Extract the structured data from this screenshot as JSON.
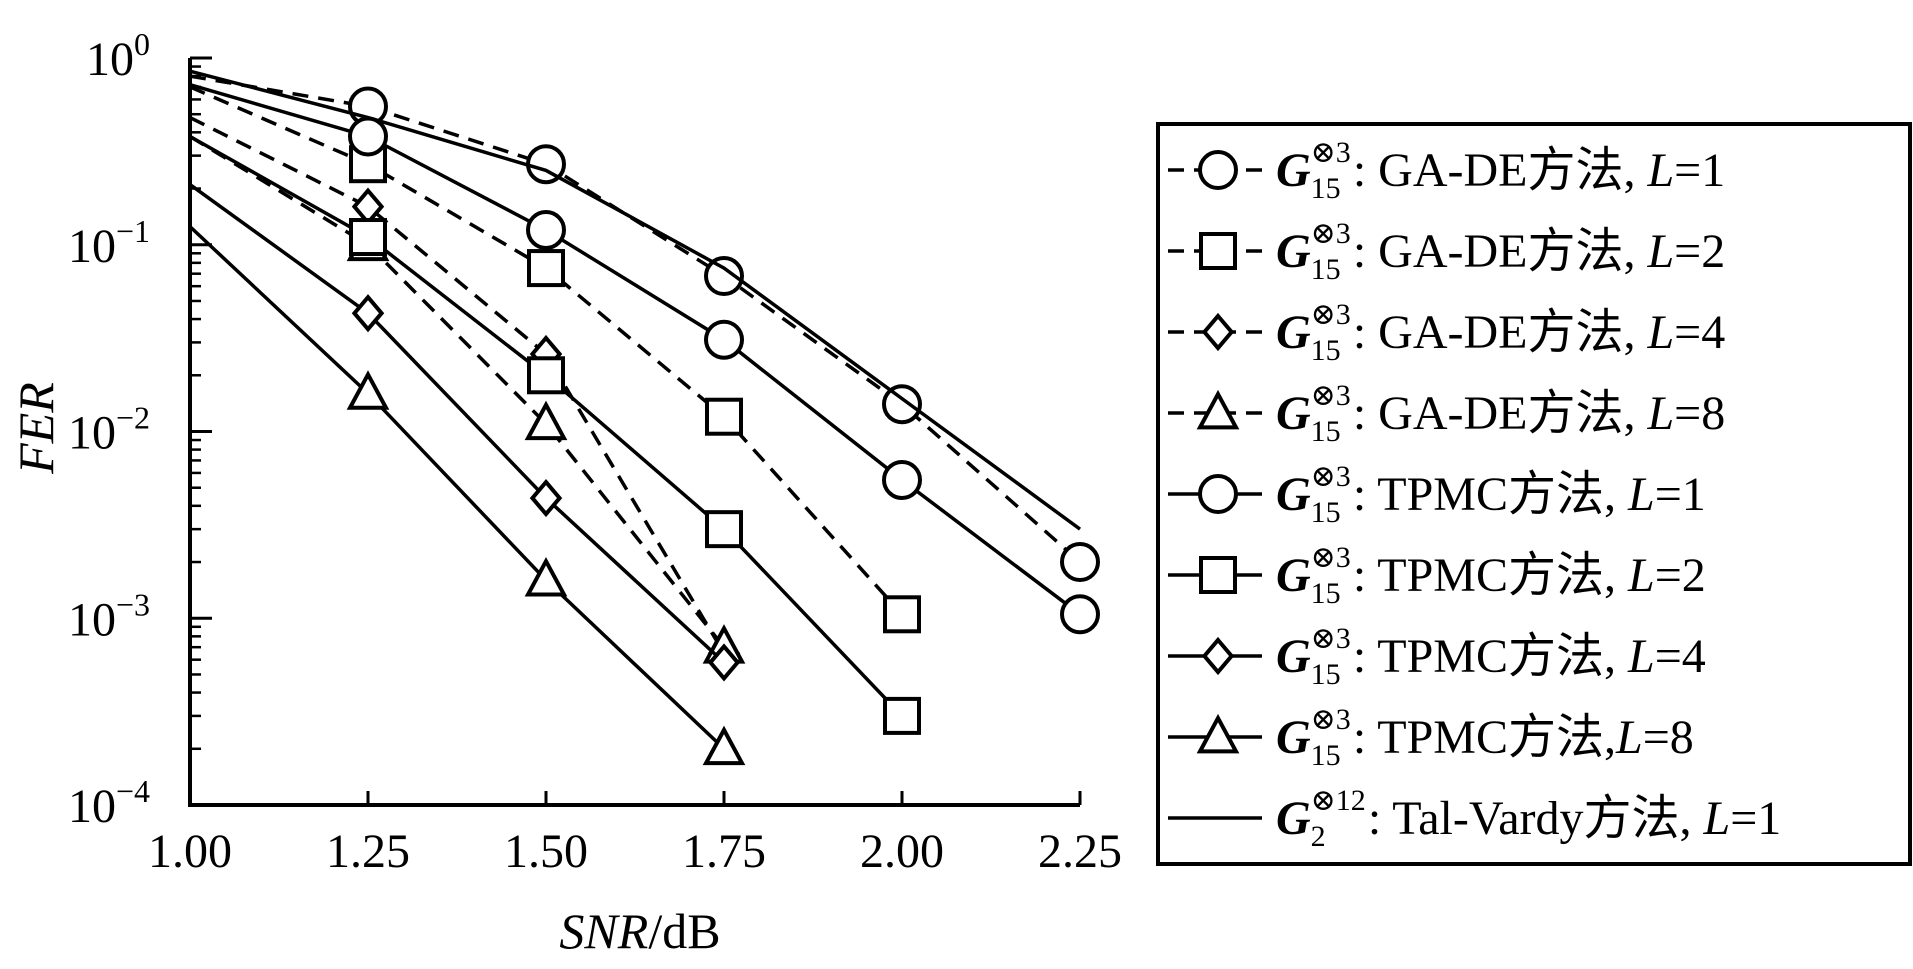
{
  "chart_data": {
    "type": "line",
    "xlabel": {
      "italic": "SNR",
      "rest": "/dB"
    },
    "ylabel": "FER",
    "xlim": [
      1.0,
      2.25
    ],
    "ylim": [
      0.0001,
      1
    ],
    "yscale": "log",
    "grid": false,
    "legend_placement": "right",
    "x_ticks": [
      "1.00",
      "1.25",
      "1.50",
      "1.75",
      "2.00",
      "2.25"
    ],
    "y_ticks": [
      {
        "base": "10",
        "exp": "0"
      },
      {
        "base": "10",
        "exp": "−1"
      },
      {
        "base": "10",
        "exp": "−2"
      },
      {
        "base": "10",
        "exp": "−3"
      },
      {
        "base": "10",
        "exp": "−4"
      }
    ],
    "series": [
      {
        "name": "G15⊗3: GA-DE方法, L=1",
        "marker": "circle",
        "dash": true,
        "code": {
          "base": "G",
          "sub": "15",
          "sup": "⊗3"
        },
        "method": ": GA-DE方法, ",
        "param": "L",
        "val": "=1",
        "x": [
          1.0,
          1.25,
          1.5,
          1.75,
          2.0,
          2.25
        ],
        "y": [
          0.8,
          0.55,
          0.27,
          0.068,
          0.014,
          0.002
        ]
      },
      {
        "name": "G15⊗3: GA-DE方法, L=2",
        "marker": "square",
        "dash": true,
        "code": {
          "base": "G",
          "sub": "15",
          "sup": "⊗3"
        },
        "method": ": GA-DE方法, ",
        "param": "L",
        "val": "=2",
        "x": [
          1.0,
          1.25,
          1.5,
          1.75,
          2.0
        ],
        "y": [
          0.7,
          0.27,
          0.075,
          0.012,
          0.00105
        ]
      },
      {
        "name": "G15⊗3: GA-DE方法, L=4",
        "marker": "diamond",
        "dash": true,
        "code": {
          "base": "G",
          "sub": "15",
          "sup": "⊗3"
        },
        "method": ": GA-DE方法, ",
        "param": "L",
        "val": "=4",
        "x": [
          1.0,
          1.25,
          1.5,
          1.75
        ],
        "y": [
          0.48,
          0.16,
          0.026,
          0.00065
        ]
      },
      {
        "name": "G15⊗3: GA-DE方法, L=8",
        "marker": "triangle",
        "dash": true,
        "code": {
          "base": "G",
          "sub": "15",
          "sup": "⊗3"
        },
        "method": ": GA-DE方法, ",
        "param": "L",
        "val": "=8",
        "x": [
          1.0,
          1.25,
          1.5,
          1.75
        ],
        "y": [
          0.38,
          0.1,
          0.011,
          0.0007
        ]
      },
      {
        "name": "G15⊗3: TPMC方法, L=1",
        "marker": "circle",
        "dash": false,
        "code": {
          "base": "G",
          "sub": "15",
          "sup": "⊗3"
        },
        "method": ": TPMC方法, ",
        "param": "L",
        "val": "=1",
        "x": [
          1.0,
          1.25,
          1.5,
          1.75,
          2.0,
          2.25
        ],
        "y": [
          0.72,
          0.38,
          0.12,
          0.031,
          0.0055,
          0.00105
        ]
      },
      {
        "name": "G15⊗3: TPMC方法, L=2",
        "marker": "square",
        "dash": false,
        "code": {
          "base": "G",
          "sub": "15",
          "sup": "⊗3"
        },
        "method": ": TPMC方法, ",
        "param": "L",
        "val": "=2",
        "x": [
          1.0,
          1.25,
          1.5,
          1.75,
          2.0
        ],
        "y": [
          0.38,
          0.11,
          0.02,
          0.003,
          0.0003
        ]
      },
      {
        "name": "G15⊗3: TPMC方法, L=4",
        "marker": "diamond",
        "dash": false,
        "code": {
          "base": "G",
          "sub": "15",
          "sup": "⊗3"
        },
        "method": ": TPMC方法, ",
        "param": "L",
        "val": "=4",
        "x": [
          1.0,
          1.25,
          1.5,
          1.75
        ],
        "y": [
          0.21,
          0.043,
          0.0044,
          0.00058
        ]
      },
      {
        "name": "G15⊗3: TPMC方法,L=8",
        "marker": "triangle",
        "dash": false,
        "code": {
          "base": "G",
          "sub": "15",
          "sup": "⊗3"
        },
        "method": ": TPMC方法,",
        "param": "L",
        "val": "=8",
        "x": [
          1.0,
          1.25,
          1.5,
          1.75
        ],
        "y": [
          0.125,
          0.016,
          0.0016,
          0.0002
        ]
      },
      {
        "name": "G2⊗12: Tal-Vardy方法, L=1",
        "marker": "none",
        "dash": false,
        "code": {
          "base": "G",
          "sub": "2",
          "sup": "⊗12"
        },
        "method": ": Tal-Vardy方法, ",
        "param": "L",
        "val": "=1",
        "x": [
          1.0,
          1.25,
          1.5,
          1.75,
          2.0,
          2.25
        ],
        "y": [
          0.85,
          0.48,
          0.25,
          0.075,
          0.015,
          0.003
        ]
      }
    ]
  }
}
